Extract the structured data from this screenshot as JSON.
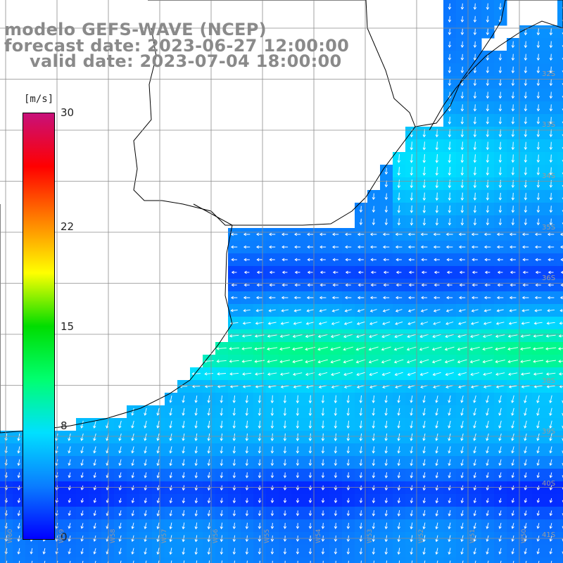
{
  "title": {
    "line1": "modelo GEFS-WAVE (NCEP)",
    "line2": "forecast date: 2023-06-27 12:00:00",
    "line3": "valid date: 2023-07-04 18:00:00"
  },
  "colorbar": {
    "units": "[m/s]",
    "min": 0,
    "max": 30,
    "ticks": [
      "30",
      "22",
      "15",
      "8",
      "0"
    ],
    "tick_values": [
      30,
      22,
      15,
      8,
      0
    ],
    "stops": [
      "#0000ff",
      "#0a7dff",
      "#00e0ff",
      "#00ff70",
      "#00dd00",
      "#ffff00",
      "#ff8000",
      "#ff0000",
      "#c8107a"
    ]
  },
  "latitude_labels": [
    "32S",
    "33S",
    "34S",
    "35S",
    "36S",
    "38S",
    "39S",
    "40S",
    "41S"
  ],
  "longitude_labels": [
    "W60",
    "W59",
    "W58",
    "W57",
    "W56",
    "W55",
    "W54",
    "W53",
    "W52",
    "W51",
    "W50"
  ],
  "colors": {
    "land": "#ffffff",
    "grid": "#8c8c8c",
    "coast": "#000000",
    "label": "#8a8a8a",
    "arrow": "#ffffff"
  },
  "chart_data": {
    "type": "heatmap",
    "variable": "wind speed",
    "units": "[m/s]",
    "arrows": "wind direction"
  }
}
